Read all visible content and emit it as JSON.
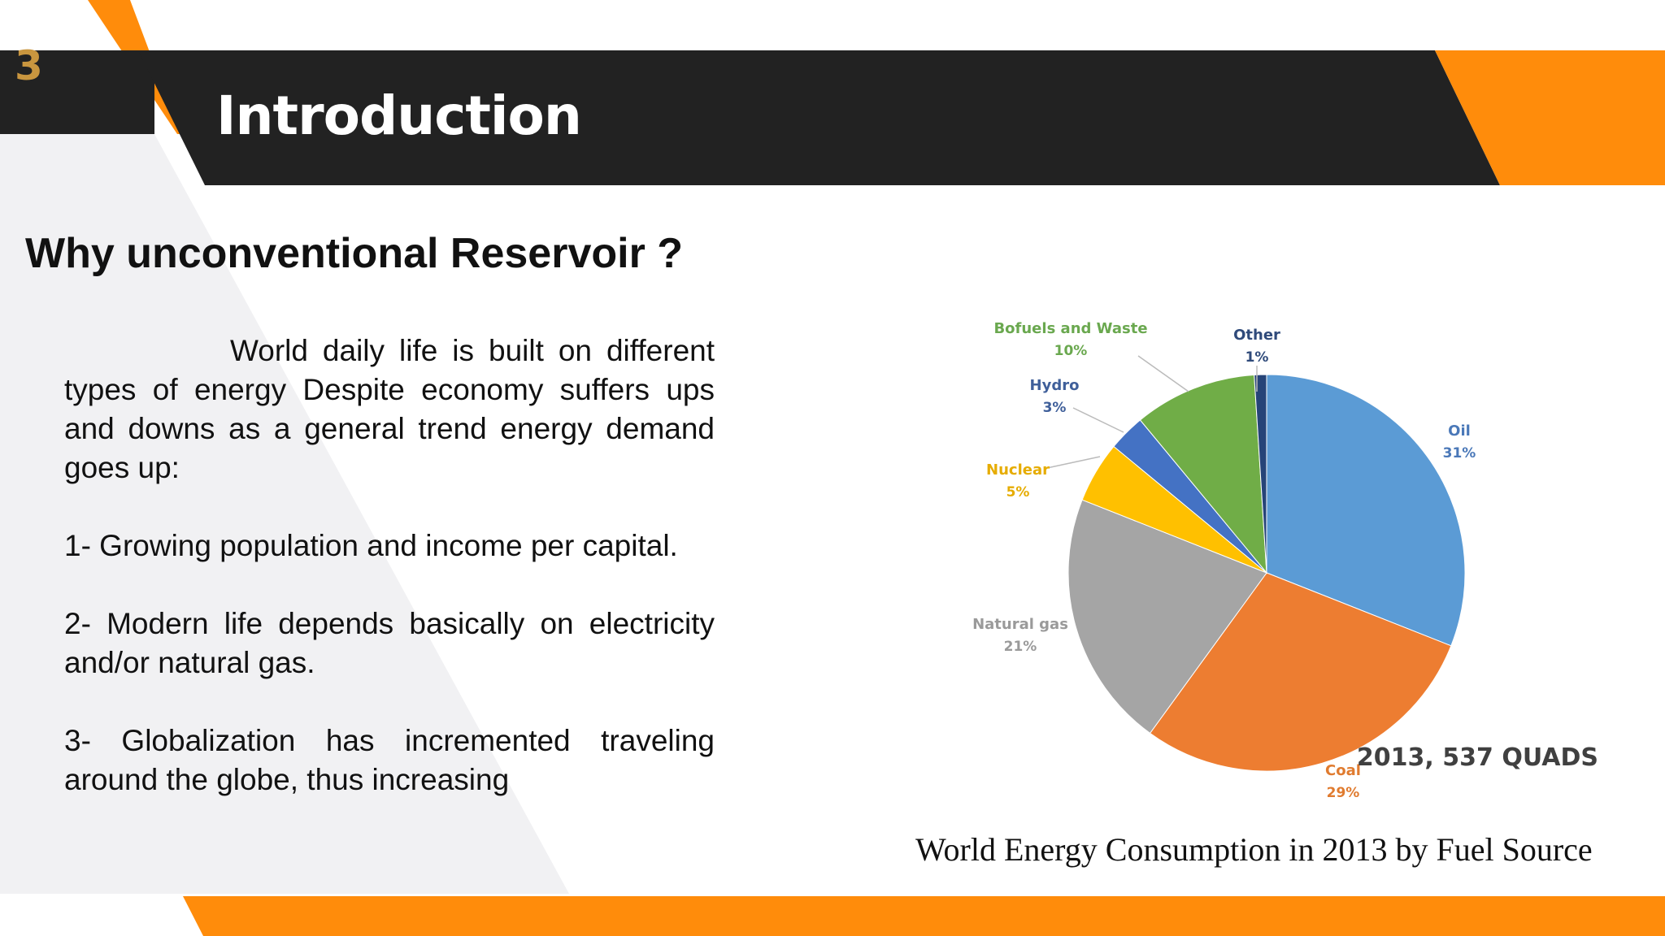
{
  "slide": {
    "page_number": "3",
    "title": "Introduction",
    "subheading": "Why unconventional Reservoir ?",
    "paragraphs": [
      "World daily life is built on different types of energy Despite economy suffers ups and downs as a general trend energy demand goes up:",
      "1- Growing population and income per capital.",
      "2- Modern life depends basically on electricity and/or natural gas.",
      "3- Globalization has incremented traveling around the globe, thus increasing"
    ],
    "caption": "World Energy Consumption in 2013 by Fuel Source"
  },
  "colors": {
    "dark_band": "#222222",
    "accent_orange": "#ff8c0b",
    "light_panel": "#f1f1f3"
  },
  "chart_data": {
    "type": "pie",
    "annotation": "2013, 537 QUADS",
    "slices": [
      {
        "label": "Oil",
        "value": 31,
        "value_label": "31%",
        "color": "#5b9bd5",
        "label_color": "#4a78b8"
      },
      {
        "label": "Coal",
        "value": 29,
        "value_label": "29%",
        "color": "#ed7d31",
        "label_color": "#e07b2f"
      },
      {
        "label": "Natural gas",
        "value": 21,
        "value_label": "21%",
        "color": "#a5a5a5",
        "label_color": "#9a9a9a"
      },
      {
        "label": "Nuclear",
        "value": 5,
        "value_label": "5%",
        "color": "#ffc000",
        "label_color": "#e6ac00"
      },
      {
        "label": "Hydro",
        "value": 3,
        "value_label": "3%",
        "color": "#4472c4",
        "label_color": "#3f5f9a"
      },
      {
        "label": "Bofuels and Waste",
        "value": 10,
        "value_label": "10%",
        "color": "#70ad47",
        "label_color": "#6aa84f"
      },
      {
        "label": "Other",
        "value": 1,
        "value_label": "1%",
        "color": "#264478",
        "label_color": "#2f4a7a"
      }
    ]
  }
}
